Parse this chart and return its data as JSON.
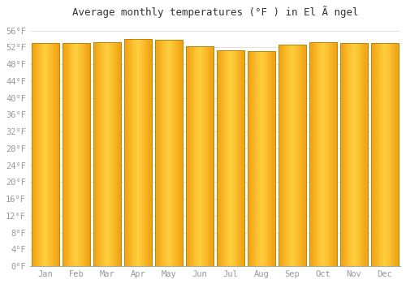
{
  "title": "Average monthly temperatures (°F ) in El Ã ngel",
  "months": [
    "Jan",
    "Feb",
    "Mar",
    "Apr",
    "May",
    "Jun",
    "Jul",
    "Aug",
    "Sep",
    "Oct",
    "Nov",
    "Dec"
  ],
  "values": [
    53.1,
    53.1,
    53.2,
    54.0,
    53.8,
    52.3,
    51.3,
    51.1,
    52.7,
    53.2,
    53.1,
    53.1
  ],
  "bar_color_left": "#F0A010",
  "bar_color_center": "#FFD040",
  "bar_color_right": "#F0A010",
  "bar_border_color": "#B8860B",
  "background_color": "#FFFFFF",
  "grid_color": "#DDDDDD",
  "ylim": [
    0,
    58
  ],
  "yticks": [
    0,
    4,
    8,
    12,
    16,
    20,
    24,
    28,
    32,
    36,
    40,
    44,
    48,
    52,
    56
  ],
  "ytick_labels": [
    "0°F",
    "4°F",
    "8°F",
    "12°F",
    "16°F",
    "20°F",
    "24°F",
    "28°F",
    "32°F",
    "36°F",
    "40°F",
    "44°F",
    "48°F",
    "52°F",
    "56°F"
  ],
  "title_fontsize": 9,
  "tick_fontsize": 7.5,
  "title_color": "#333333",
  "tick_color": "#999999"
}
